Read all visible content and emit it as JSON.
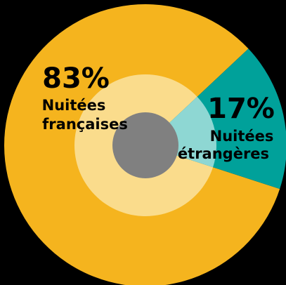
{
  "chart_data": {
    "type": "pie",
    "categories": [
      "Nuitées françaises",
      "Nuitées étrangères"
    ],
    "values": [
      83,
      17
    ],
    "value_labels": [
      "83%",
      "17%"
    ],
    "colors": [
      "#f5b41e",
      "#00a19a"
    ],
    "inner_colors": [
      "#fadc8c",
      "#8ed7d3"
    ],
    "center_color": "#808080"
  }
}
